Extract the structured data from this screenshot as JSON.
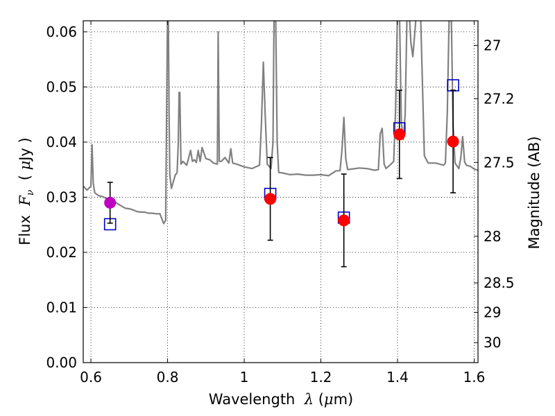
{
  "chart_data": {
    "type": "scatter",
    "title": "",
    "xlabel_prefix": "Wavelength  ",
    "xlabel_symbol": "λ",
    "xlabel_suffix": " (",
    "xlabel_unit_symbol": "μ",
    "xlabel_unit_rest": "m)",
    "ylabel_prefix": "Flux  ",
    "ylabel_symbol": "F",
    "ylabel_subscript": "ν",
    "ylabel_suffix": "  ( ",
    "ylabel_unit_symbol": "μ",
    "ylabel_unit_rest": "Jy )",
    "y2label": "Magnitude (AB)",
    "xlim": [
      0.58,
      1.61
    ],
    "ylim": [
      0.0,
      0.062
    ],
    "grid": true,
    "x_ticks": [
      {
        "value": 0.6,
        "label": "0.6"
      },
      {
        "value": 0.8,
        "label": "0.8"
      },
      {
        "value": 1.0,
        "label": "1"
      },
      {
        "value": 1.2,
        "label": "1.2"
      },
      {
        "value": 1.4,
        "label": "1.4"
      },
      {
        "value": 1.6,
        "label": "1.6"
      }
    ],
    "y_ticks": [
      {
        "value": 0.0,
        "label": "0.00"
      },
      {
        "value": 0.01,
        "label": "0.01"
      },
      {
        "value": 0.02,
        "label": "0.02"
      },
      {
        "value": 0.03,
        "label": "0.03"
      },
      {
        "value": 0.04,
        "label": "0.04"
      },
      {
        "value": 0.05,
        "label": "0.05"
      },
      {
        "value": 0.06,
        "label": "0.06"
      }
    ],
    "y2_ticks": [
      {
        "mag": 27,
        "label": "27"
      },
      {
        "mag": 27.2,
        "label": "27.2"
      },
      {
        "mag": 27.5,
        "label": "27.5"
      },
      {
        "mag": 28,
        "label": "28"
      },
      {
        "mag": 28.5,
        "label": "28.5"
      },
      {
        "mag": 29,
        "label": "29"
      },
      {
        "mag": 30,
        "label": "30"
      }
    ],
    "observed": [
      {
        "x": 0.65,
        "y": 0.029,
        "err": 0.0037,
        "color": "#bf00bf"
      },
      {
        "x": 1.068,
        "y": 0.0297,
        "err": 0.0075,
        "color": "#ff0000"
      },
      {
        "x": 1.26,
        "y": 0.0258,
        "err": 0.0084,
        "color": "#ff0000"
      },
      {
        "x": 1.405,
        "y": 0.0414,
        "err": 0.008,
        "color": "#ff0000"
      },
      {
        "x": 1.545,
        "y": 0.0401,
        "err": 0.0093,
        "color": "#ff0000"
      }
    ],
    "model_points": [
      {
        "x": 0.65,
        "y": 0.0251
      },
      {
        "x": 1.068,
        "y": 0.0306
      },
      {
        "x": 1.26,
        "y": 0.0263
      },
      {
        "x": 1.405,
        "y": 0.0425
      },
      {
        "x": 1.545,
        "y": 0.0503
      }
    ],
    "spectrum": {
      "color": "#808080",
      "x": [
        0.58,
        0.59,
        0.6,
        0.603,
        0.606,
        0.61,
        0.62,
        0.63,
        0.64,
        0.65,
        0.66,
        0.67,
        0.68,
        0.69,
        0.7,
        0.71,
        0.72,
        0.73,
        0.74,
        0.75,
        0.76,
        0.77,
        0.78,
        0.79,
        0.795,
        0.8,
        0.802,
        0.804,
        0.806,
        0.81,
        0.82,
        0.825,
        0.828,
        0.83,
        0.832,
        0.835,
        0.84,
        0.85,
        0.86,
        0.865,
        0.87,
        0.875,
        0.88,
        0.885,
        0.89,
        0.9,
        0.91,
        0.92,
        0.93,
        0.932,
        0.935,
        0.94,
        0.95,
        0.96,
        0.965,
        0.97,
        0.98,
        1.0,
        1.02,
        1.04,
        1.045,
        1.05,
        1.055,
        1.06,
        1.07,
        1.075,
        1.078,
        1.082,
        1.086,
        1.09,
        1.1,
        1.12,
        1.14,
        1.16,
        1.18,
        1.2,
        1.22,
        1.24,
        1.25,
        1.255,
        1.26,
        1.265,
        1.27,
        1.28,
        1.3,
        1.32,
        1.34,
        1.35,
        1.355,
        1.36,
        1.365,
        1.37,
        1.38,
        1.39,
        1.395,
        1.4,
        1.405,
        1.41,
        1.415,
        1.42,
        1.425,
        1.43,
        1.435,
        1.44,
        1.45,
        1.46,
        1.47,
        1.48,
        1.5,
        1.52,
        1.525,
        1.53,
        1.535,
        1.54,
        1.545,
        1.55,
        1.56,
        1.565,
        1.57,
        1.575,
        1.58,
        1.59,
        1.6,
        1.61
      ],
      "y": [
        0.032,
        0.0313,
        0.032,
        0.0395,
        0.0325,
        0.0308,
        0.0303,
        0.0301,
        0.0298,
        0.0296,
        0.0293,
        0.0288,
        0.0284,
        0.028,
        0.0279,
        0.0277,
        0.0274,
        0.0273,
        0.0273,
        0.0271,
        0.0271,
        0.027,
        0.027,
        0.0252,
        0.0258,
        0.064,
        0.064,
        0.045,
        0.034,
        0.0316,
        0.034,
        0.0345,
        0.04,
        0.049,
        0.049,
        0.036,
        0.0365,
        0.0358,
        0.0385,
        0.0365,
        0.0368,
        0.0363,
        0.0385,
        0.0365,
        0.039,
        0.037,
        0.0368,
        0.0362,
        0.036,
        0.06,
        0.0365,
        0.0365,
        0.0372,
        0.0362,
        0.0388,
        0.0362,
        0.036,
        0.0355,
        0.0352,
        0.0358,
        0.0435,
        0.0545,
        0.0445,
        0.036,
        0.0352,
        0.04,
        0.064,
        0.064,
        0.04,
        0.0345,
        0.0344,
        0.0341,
        0.0342,
        0.034,
        0.034,
        0.0341,
        0.0339,
        0.0348,
        0.0348,
        0.0385,
        0.0445,
        0.037,
        0.035,
        0.0351,
        0.0353,
        0.0352,
        0.0349,
        0.035,
        0.0415,
        0.0425,
        0.036,
        0.0352,
        0.0358,
        0.0365,
        0.0459,
        0.064,
        0.064,
        0.0435,
        0.0405,
        0.045,
        0.064,
        0.064,
        0.058,
        0.0555,
        0.064,
        0.064,
        0.0375,
        0.0362,
        0.0362,
        0.0358,
        0.0362,
        0.0455,
        0.064,
        0.0645,
        0.043,
        0.0362,
        0.0352,
        0.037,
        0.041,
        0.0364,
        0.0358,
        0.0356,
        0.0351,
        0.0349
      ]
    }
  }
}
